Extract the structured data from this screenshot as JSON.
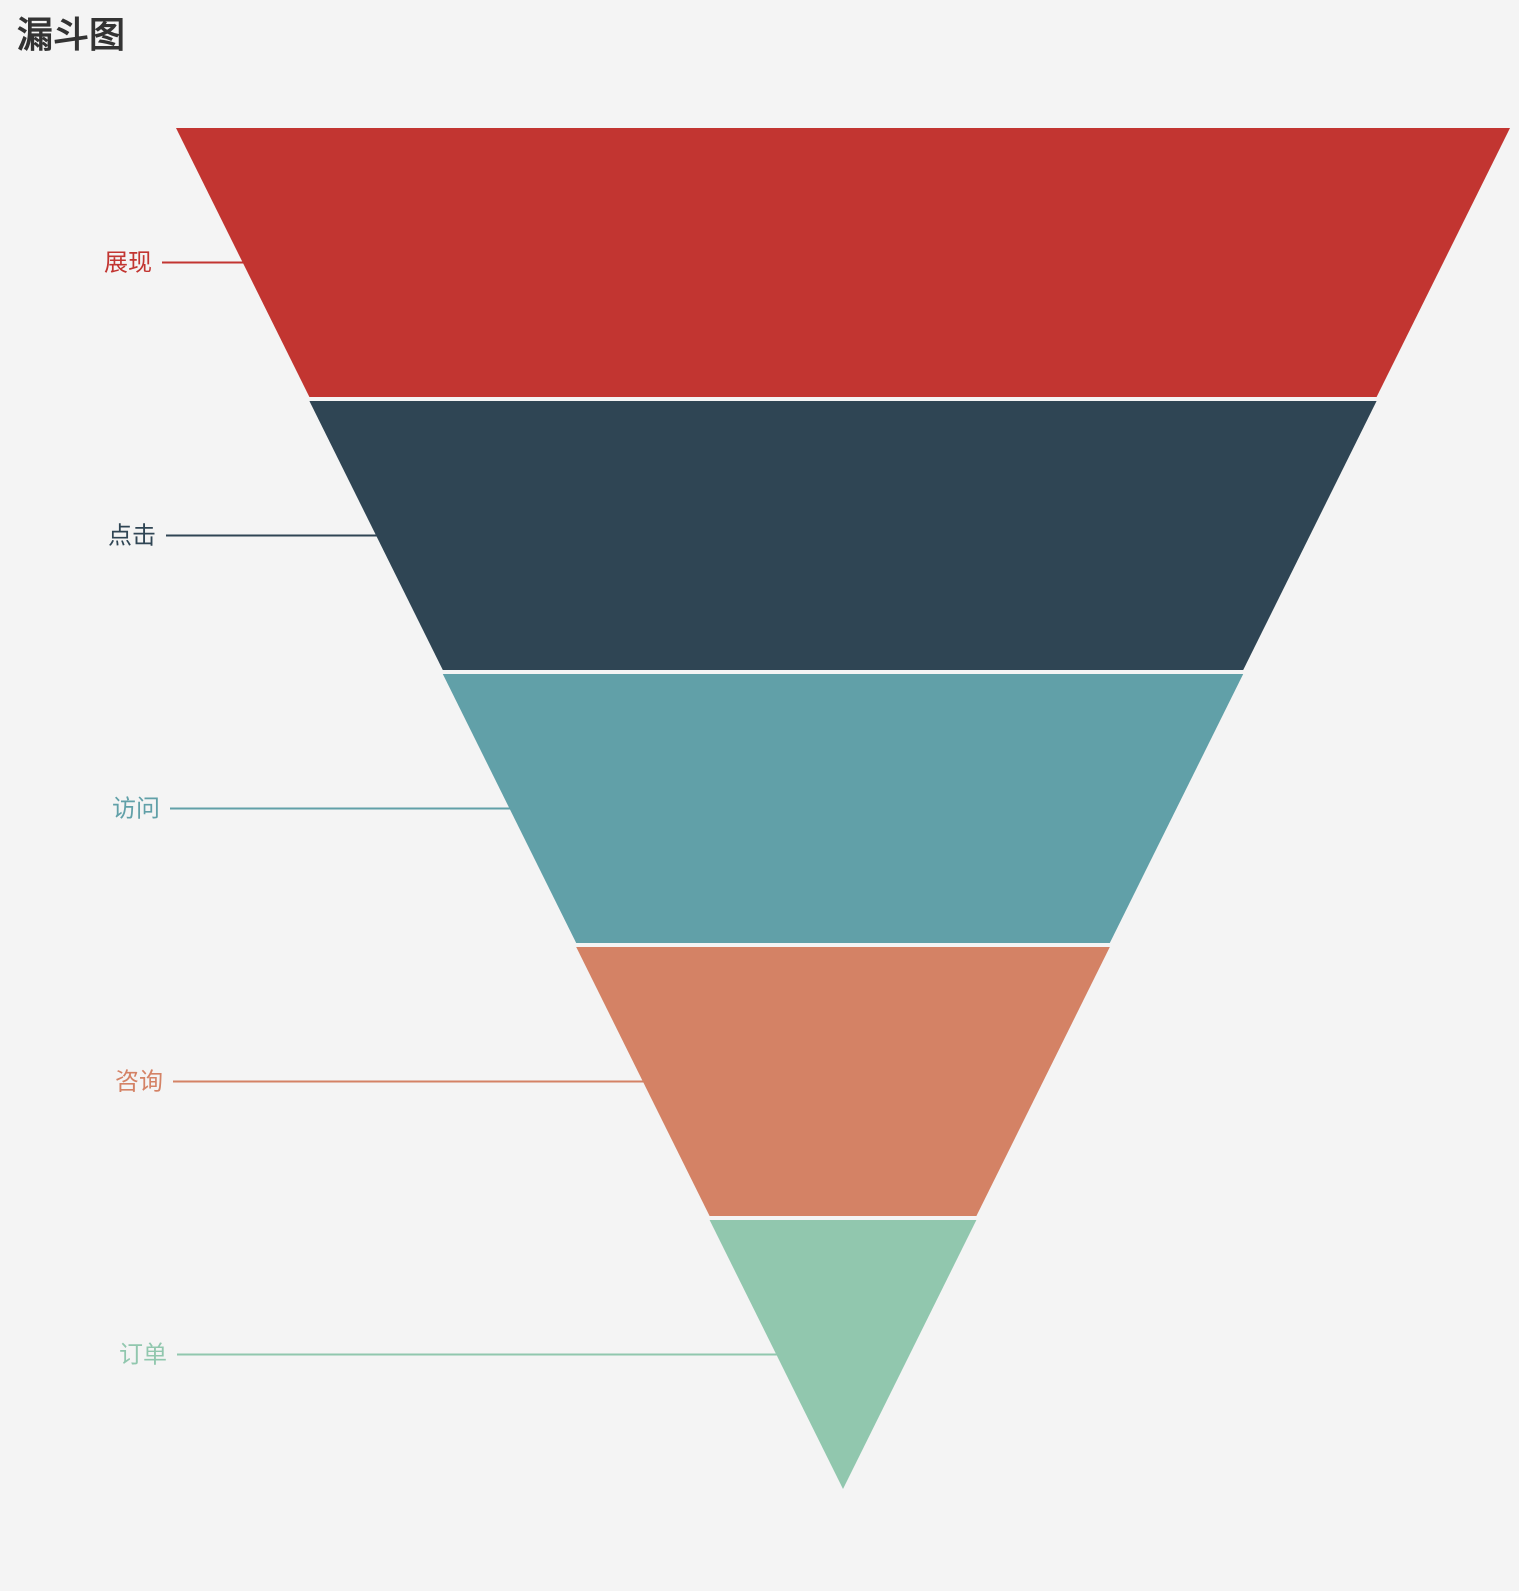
{
  "chart_data": {
    "type": "funnel",
    "title": "漏斗图",
    "categories": [
      "展现",
      "点击",
      "访问",
      "咨询",
      "订单"
    ],
    "values": [
      100,
      80,
      60,
      40,
      20
    ],
    "colors": [
      "#c23531",
      "#2f4554",
      "#61a0a8",
      "#d48265",
      "#91c7ae"
    ],
    "sort": "descending",
    "label_position": "left",
    "min": 0,
    "max": 100,
    "legend": "none",
    "grid": false
  }
}
